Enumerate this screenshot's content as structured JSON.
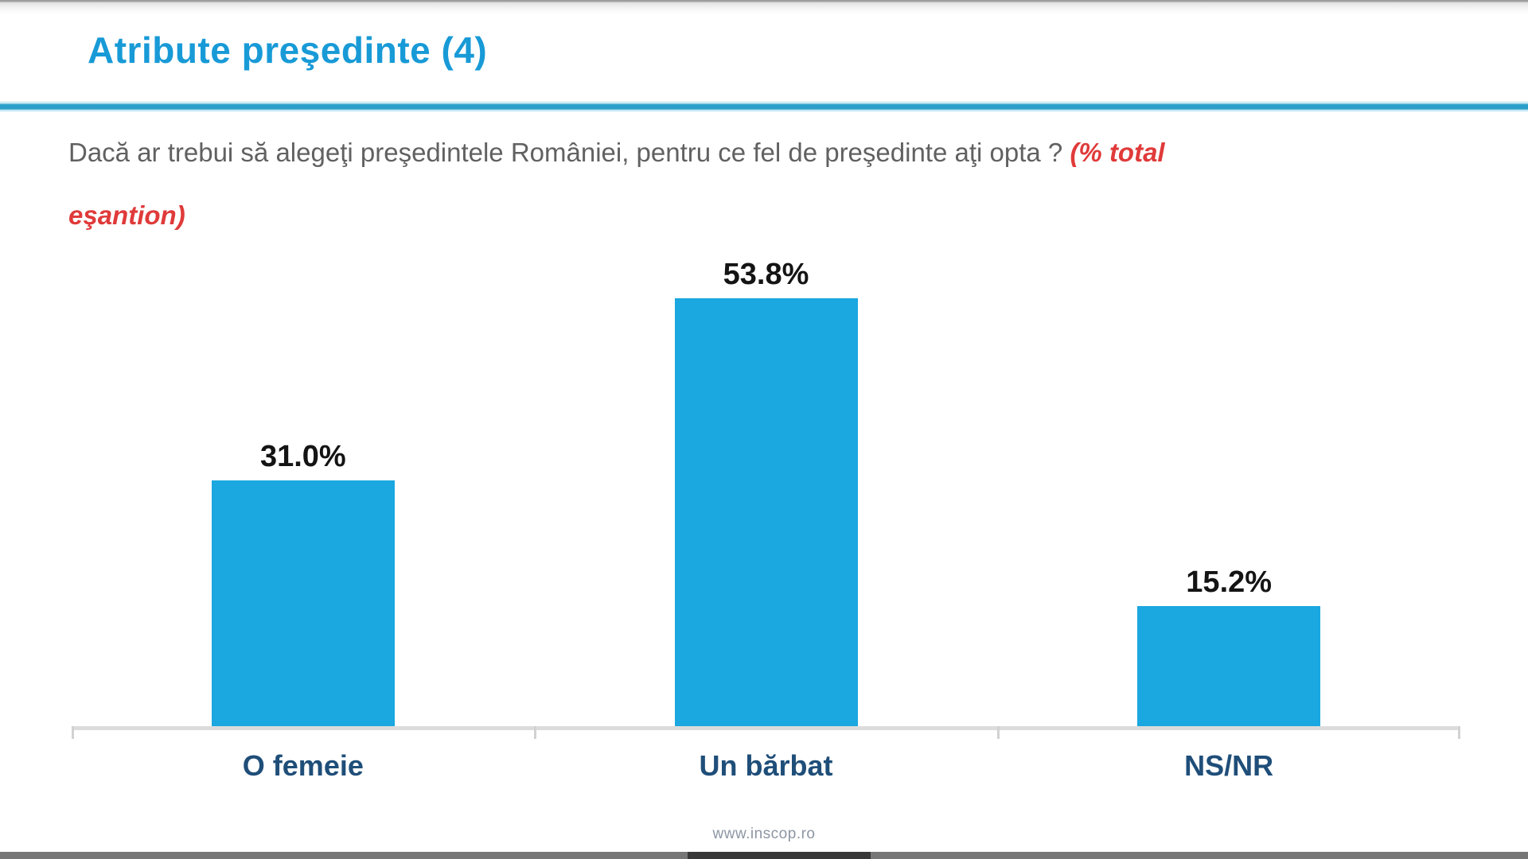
{
  "header": {
    "title": "Atribute preşedinte (4)"
  },
  "question": {
    "text_gray": "Dacă ar trebui să alegeţi preşedintele României, pentru ce fel de preşedinte aţi opta ? ",
    "note_line1": "(% total",
    "note_line2": "eşantion)"
  },
  "chart_data": {
    "type": "bar",
    "title": "Atribute preşedinte (4)",
    "subtitle": "Dacă ar trebui să alegeţi preşedintele României, pentru ce fel de preşedinte aţi opta ? (% total eşantion)",
    "categories": [
      "O femeie",
      "Un bărbat",
      "NS/NR"
    ],
    "values": [
      31.0,
      53.8,
      15.2
    ],
    "value_labels": [
      "31.0%",
      "53.8%",
      "15.2%"
    ],
    "xlabel": "",
    "ylabel": "",
    "ylim": [
      0,
      60
    ],
    "grid": false,
    "legend": false,
    "bar_color": "#1ba7e0",
    "value_label_color": "#141414",
    "category_label_color": "#1f4e79",
    "axis_color": "#dcdcdc"
  },
  "footer": {
    "url": "www.inscop.ro"
  },
  "colors": {
    "title_blue": "#189ad7",
    "rule_blue": "#2b9fc9",
    "question_gray": "#616161",
    "note_red": "#e03a3a",
    "scrollbar_track": "#767676",
    "scrollbar_thumb": "#383838"
  }
}
